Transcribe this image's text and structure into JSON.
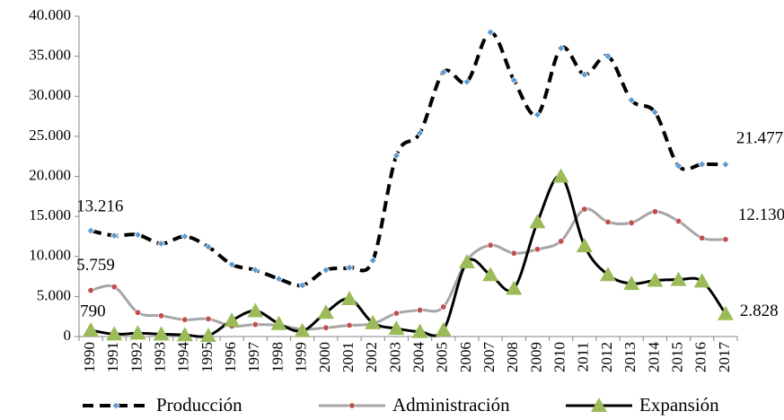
{
  "chart_data": {
    "type": "line",
    "categories": [
      "1990",
      "1991",
      "1992",
      "1993",
      "1994",
      "1995",
      "1996",
      "1997",
      "1998",
      "1999",
      "2000",
      "2001",
      "2002",
      "2003",
      "2004",
      "2005",
      "2006",
      "2007",
      "2008",
      "2009",
      "2010",
      "2011",
      "2012",
      "2013",
      "2014",
      "2015",
      "2016",
      "2017"
    ],
    "ylim": [
      0,
      40000
    ],
    "yticks": [
      0,
      {
        "value": 5000,
        "label": "5.000"
      },
      {
        "value": 10000,
        "label": "10.000"
      },
      {
        "value": 15000,
        "label": "15.000"
      },
      {
        "value": 20000,
        "label": "20.000"
      },
      {
        "value": 25000,
        "label": "25.000"
      },
      {
        "value": 30000,
        "label": "30.000"
      },
      {
        "value": 35000,
        "label": "35.000"
      },
      {
        "value": 40000,
        "label": "40.000"
      }
    ],
    "grid": false,
    "legend": "bottom",
    "series": [
      {
        "name": "Producción",
        "color": "#000000",
        "dash": true,
        "marker": "diamond",
        "marker_color": "#5b9bd5",
        "values": [
          13216,
          12600,
          12700,
          11600,
          12500,
          11200,
          9000,
          8300,
          7200,
          6400,
          8300,
          8600,
          9500,
          22600,
          25400,
          33000,
          31800,
          38000,
          32000,
          27700,
          36000,
          32700,
          35000,
          29500,
          28000,
          21300,
          21500,
          21477
        ],
        "value_labels": [
          "13.216",
          null,
          null,
          null,
          null,
          null,
          null,
          null,
          null,
          null,
          null,
          null,
          null,
          null,
          null,
          null,
          null,
          null,
          null,
          null,
          null,
          null,
          null,
          null,
          null,
          null,
          null,
          "21.477"
        ]
      },
      {
        "name": "Administración",
        "color": "#a6a6a6",
        "dash": false,
        "marker": "circle",
        "marker_color": "#c0504d",
        "values": [
          5759,
          6200,
          3000,
          2600,
          2100,
          2200,
          1300,
          1500,
          1400,
          900,
          1100,
          1400,
          1600,
          2900,
          3300,
          3700,
          9500,
          11400,
          10400,
          10900,
          11900,
          15900,
          14300,
          14200,
          15600,
          14400,
          12300,
          12130
        ],
        "value_labels": [
          "5.759",
          null,
          null,
          null,
          null,
          null,
          null,
          null,
          null,
          null,
          null,
          null,
          null,
          null,
          null,
          null,
          null,
          null,
          null,
          null,
          null,
          null,
          null,
          null,
          null,
          null,
          null,
          "12.130"
        ]
      },
      {
        "name": "Expansión",
        "color": "#000000",
        "dash": false,
        "marker": "triangle",
        "marker_color": "#9bbb59",
        "values": [
          790,
          300,
          400,
          300,
          200,
          100,
          2000,
          3200,
          1600,
          700,
          3000,
          4700,
          1700,
          1000,
          600,
          800,
          9300,
          7700,
          6000,
          14300,
          20000,
          11300,
          7700,
          6600,
          7000,
          7100,
          6900,
          2828
        ],
        "value_labels": [
          "790",
          null,
          null,
          null,
          null,
          null,
          null,
          null,
          null,
          null,
          null,
          null,
          null,
          null,
          null,
          null,
          null,
          null,
          null,
          null,
          null,
          null,
          null,
          null,
          null,
          null,
          null,
          "2.828"
        ]
      }
    ]
  }
}
